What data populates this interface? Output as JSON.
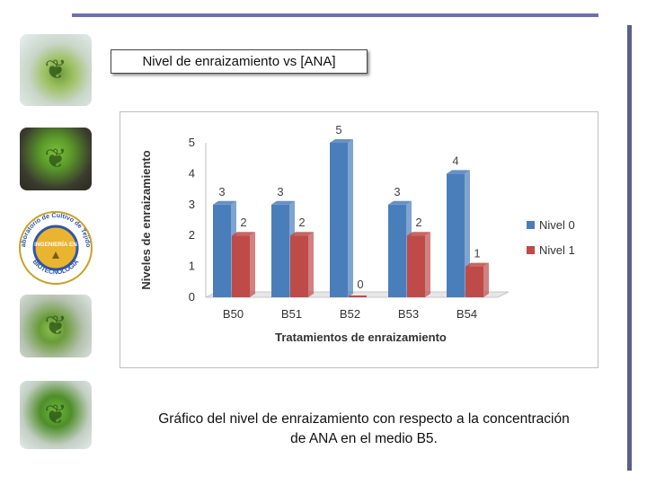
{
  "slide": {
    "title": "Nivel de enraizamiento vs [ANA]",
    "caption": "Gráfico del nivel de enraizamiento con respecto a la concentración de ANA en el medio B5."
  },
  "logo": {
    "top_text": "Laboratorio de Cultivo de Tejidos",
    "center_text": "INGENIERÍA EN",
    "bottom_text": "BIOTECNOLOGÍA"
  },
  "chart_data": {
    "type": "bar",
    "title": "",
    "xlabel": "Tratamientos de enraizamiento",
    "ylabel": "Niveles de enraizamiento",
    "categories": [
      "B50",
      "B51",
      "B52",
      "B53",
      "B54"
    ],
    "series": [
      {
        "name": "Nivel 0",
        "values": [
          3,
          3,
          5,
          3,
          4
        ],
        "color": "#4a7ebb"
      },
      {
        "name": "Nivel 1",
        "values": [
          2,
          2,
          0,
          2,
          1
        ],
        "color": "#be4b48"
      }
    ],
    "ylim": [
      0,
      5
    ],
    "yticks": [
      "0",
      "1",
      "2",
      "3",
      "4",
      "5"
    ],
    "grid": false,
    "legend": "right",
    "data_labels": true
  }
}
